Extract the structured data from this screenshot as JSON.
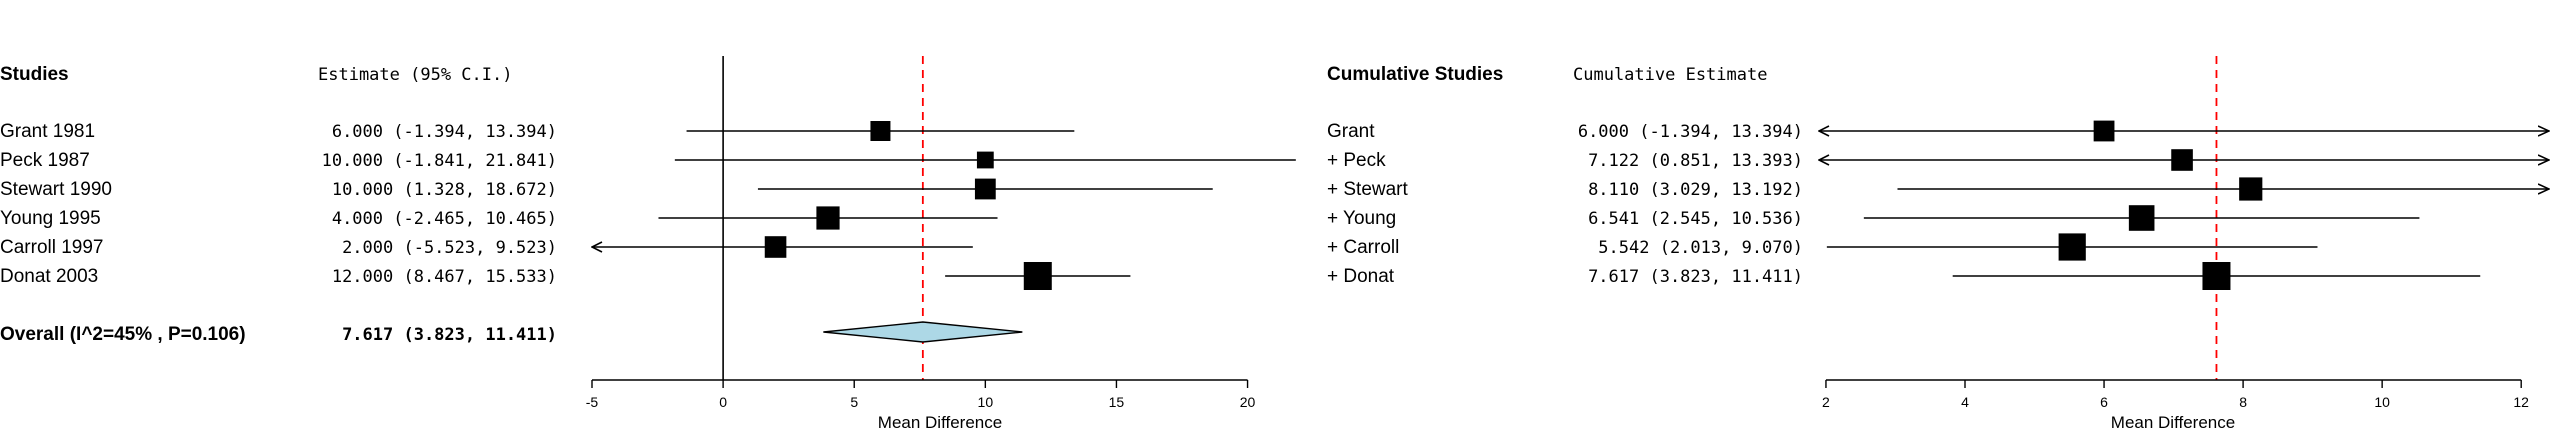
{
  "chart_data": [
    {
      "type": "forest",
      "header_label": "Studies",
      "header_estimate": "Estimate (95% C.I.)",
      "xlabel": "Mean Difference",
      "xlim": [
        -5,
        22
      ],
      "x_ticks": [
        -5,
        0,
        5,
        10,
        15,
        20
      ],
      "x_tick_labels": [
        "-5",
        "0",
        "5",
        "10",
        "15",
        "20"
      ],
      "reference_line": 0,
      "pooled_line": 7.617,
      "studies": [
        {
          "label": "Grant 1981",
          "estimate_text": "6.000 (-1.394, 13.394)",
          "est": 6.0,
          "lower": -1.394,
          "upper": 13.394,
          "weight": 0.5
        },
        {
          "label": "Peck 1987",
          "estimate_text": "10.000 (-1.841, 21.841)",
          "est": 10.0,
          "lower": -1.841,
          "upper": 21.841,
          "weight": 0.3
        },
        {
          "label": "Stewart 1990",
          "estimate_text": "10.000 (1.328, 18.672)",
          "est": 10.0,
          "lower": 1.328,
          "upper": 18.672,
          "weight": 0.55
        },
        {
          "label": "Young 1995",
          "estimate_text": "4.000 (-2.465, 10.465)",
          "est": 4.0,
          "lower": -2.465,
          "upper": 10.465,
          "weight": 0.7
        },
        {
          "label": "Carroll 1997",
          "estimate_text": "2.000 (-5.523, 9.523)",
          "est": 2.0,
          "lower": -5.523,
          "upper": 9.523,
          "weight": 0.6
        },
        {
          "label": "Donat 2003",
          "estimate_text": "12.000 (8.467, 15.533)",
          "est": 12.0,
          "lower": 8.467,
          "upper": 15.533,
          "weight": 1.0
        }
      ],
      "overall": {
        "label": "Overall (I^2=45% , P=0.106)",
        "estimate_text": "7.617 (3.823, 11.411)",
        "est": 7.617,
        "lower": 3.823,
        "upper": 11.411
      }
    },
    {
      "type": "forest",
      "header_label": "Cumulative Studies",
      "header_estimate": "Cumulative Estimate",
      "xlabel": "Mean Difference",
      "xlim": [
        1.9,
        12.4
      ],
      "x_ticks": [
        2,
        4,
        6,
        8,
        10,
        12
      ],
      "x_tick_labels": [
        "2",
        "4",
        "6",
        "8",
        "10",
        "12"
      ],
      "pooled_line": 7.617,
      "studies": [
        {
          "label": "Grant",
          "estimate_text": "6.000 (-1.394, 13.394)",
          "est": 6.0,
          "lower": -1.394,
          "upper": 13.394,
          "weight": 0.55
        },
        {
          "label": "+ Peck",
          "estimate_text": "7.122 (0.851, 13.393)",
          "est": 7.122,
          "lower": 0.851,
          "upper": 13.393,
          "weight": 0.6
        },
        {
          "label": "+ Stewart",
          "estimate_text": "8.110 (3.029, 13.192)",
          "est": 8.11,
          "lower": 3.029,
          "upper": 13.192,
          "weight": 0.7
        },
        {
          "label": "+ Young",
          "estimate_text": "6.541 (2.545, 10.536)",
          "est": 6.541,
          "lower": 2.545,
          "upper": 10.536,
          "weight": 0.85
        },
        {
          "label": "+ Carroll",
          "estimate_text": "5.542 (2.013, 9.070)",
          "est": 5.542,
          "lower": 2.013,
          "upper": 9.07,
          "weight": 0.95
        },
        {
          "label": "+ Donat",
          "estimate_text": "7.617 (3.823, 11.411)",
          "est": 7.617,
          "lower": 3.823,
          "upper": 11.411,
          "weight": 1.0
        }
      ]
    }
  ],
  "colors": {
    "ink": "#000000",
    "pooled_line": "#ff0000",
    "diamond_fill": "#add8e6"
  }
}
